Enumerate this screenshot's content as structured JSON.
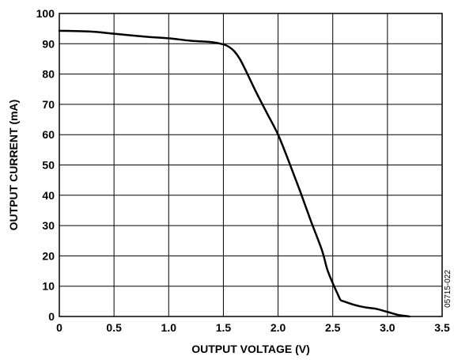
{
  "chart_data": {
    "type": "line",
    "title": "",
    "xlabel": "OUTPUT VOLTAGE (V)",
    "ylabel": "OUTPUT CURRENT (mA)",
    "xlim": [
      0,
      3.5
    ],
    "ylim": [
      0,
      100
    ],
    "x_ticks": [
      0,
      0.5,
      1.0,
      1.5,
      2.0,
      2.5,
      3.0,
      3.5
    ],
    "x_tick_labels": [
      "0",
      "0.5",
      "1.0",
      "1.5",
      "2.0",
      "2.5",
      "3.0",
      "3.5"
    ],
    "y_ticks": [
      0,
      10,
      20,
      30,
      40,
      50,
      60,
      70,
      80,
      90,
      100
    ],
    "y_tick_labels": [
      "0",
      "10",
      "20",
      "30",
      "40",
      "50",
      "60",
      "70",
      "80",
      "90",
      "100"
    ],
    "grid": true,
    "legend": "none",
    "line_color": "#000000",
    "series": [
      {
        "x": [
          0,
          0.3,
          0.5,
          0.8,
          1.0,
          1.2,
          1.4,
          1.5,
          1.55,
          1.6,
          1.65,
          1.7,
          1.8,
          1.9,
          2.0,
          2.1,
          2.2,
          2.3,
          2.4,
          2.45,
          2.5,
          2.55,
          2.57,
          2.6,
          2.7,
          2.8,
          2.9,
          3.0,
          3.1,
          3.2
        ],
        "y": [
          94.3,
          94.0,
          93.3,
          92.3,
          91.8,
          91.0,
          90.5,
          89.8,
          89.0,
          87.5,
          85.0,
          81.5,
          74.0,
          67.0,
          60.0,
          51.0,
          41.5,
          31.5,
          22.0,
          15.5,
          11.0,
          7.0,
          5.5,
          5.0,
          3.8,
          3.0,
          2.5,
          1.5,
          0.5,
          0.0
        ]
      }
    ]
  },
  "figure_id": "05715-022"
}
